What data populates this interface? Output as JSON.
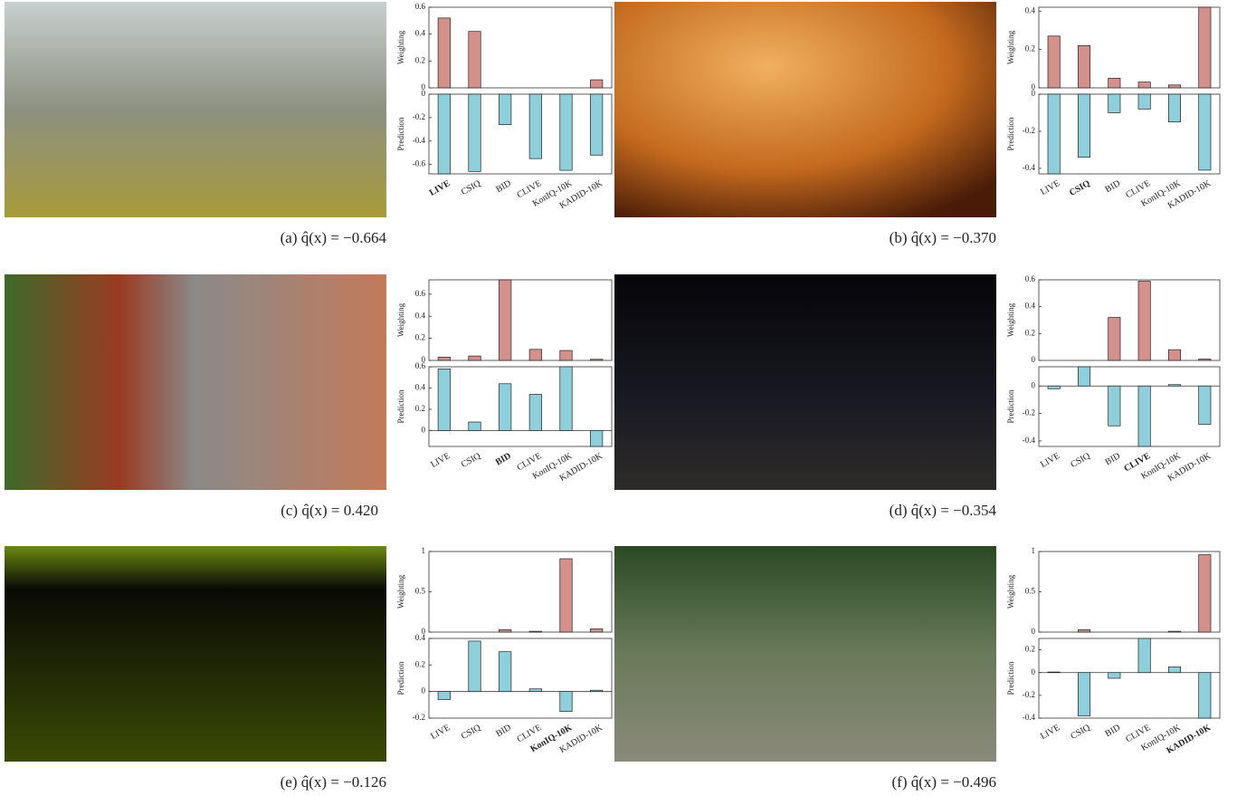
{
  "chart_data": [
    {
      "type": "bar",
      "caption": "(a) q̂(x) = −0.664",
      "categories": [
        "LIVE",
        "CSIQ",
        "BID",
        "CLIVE",
        "KonIQ-10K",
        "KADID-10K"
      ],
      "bold_category": 0,
      "series": [
        {
          "name": "Weighting",
          "color": "#d4908a",
          "values": [
            0.52,
            0.42,
            0,
            0,
            0,
            0.06
          ],
          "ylim": [
            0,
            0.6
          ],
          "yticks": [
            0,
            0.2,
            0.4,
            0.6
          ]
        },
        {
          "name": "Prediction",
          "color": "#8ecfdb",
          "values": [
            -0.68,
            -0.66,
            -0.26,
            -0.55,
            -0.65,
            -0.52
          ],
          "ylim": [
            -0.68,
            0
          ],
          "yticks": [
            -0.6,
            -0.4,
            -0.2,
            0
          ]
        }
      ]
    },
    {
      "type": "bar",
      "caption": "(b) q̂(x) = −0.370",
      "categories": [
        "LIVE",
        "CSIQ",
        "BID",
        "CLIVE",
        "KonIQ-10K",
        "KADID-10K"
      ],
      "bold_category": 1,
      "series": [
        {
          "name": "Weighting",
          "color": "#d4908a",
          "values": [
            0.27,
            0.22,
            0.05,
            0.03,
            0.015,
            0.42
          ],
          "ylim": [
            0,
            0.42
          ],
          "yticks": [
            0,
            0.2,
            0.4
          ]
        },
        {
          "name": "Prediction",
          "color": "#8ecfdb",
          "values": [
            -0.43,
            -0.34,
            -0.1,
            -0.08,
            -0.15,
            -0.41
          ],
          "ylim": [
            -0.43,
            0
          ],
          "yticks": [
            -0.4,
            -0.2,
            0
          ]
        }
      ]
    },
    {
      "type": "bar",
      "caption": "(c) q̂(x) = 0.420",
      "categories": [
        "LIVE",
        "CSIQ",
        "BID",
        "CLIVE",
        "KonIQ-10K",
        "KADID-10K"
      ],
      "bold_category": 2,
      "series": [
        {
          "name": "Weighting",
          "color": "#d4908a",
          "values": [
            0.03,
            0.04,
            0.73,
            0.1,
            0.09,
            0.01
          ],
          "ylim": [
            0,
            0.73
          ],
          "yticks": [
            0,
            0.2,
            0.4,
            0.6
          ]
        },
        {
          "name": "Prediction",
          "color": "#8ecfdb",
          "values": [
            0.58,
            0.08,
            0.44,
            0.34,
            0.6,
            -0.15
          ],
          "ylim": [
            -0.15,
            0.6
          ],
          "yticks": [
            0,
            0.2,
            0.4,
            0.6
          ]
        }
      ]
    },
    {
      "type": "bar",
      "caption": "(d) q̂(x) = −0.354",
      "categories": [
        "LIVE",
        "CSIQ",
        "BID",
        "CLIVE",
        "KonIQ-10K",
        "KADID-10K"
      ],
      "bold_category": 3,
      "series": [
        {
          "name": "Weighting",
          "color": "#d4908a",
          "values": [
            0,
            0,
            0.32,
            0.59,
            0.08,
            0.01
          ],
          "ylim": [
            0,
            0.6
          ],
          "yticks": [
            0,
            0.2,
            0.4,
            0.6
          ]
        },
        {
          "name": "Prediction",
          "color": "#8ecfdb",
          "values": [
            -0.02,
            0.14,
            -0.29,
            -0.44,
            0.01,
            -0.28
          ],
          "ylim": [
            -0.44,
            0.14
          ],
          "yticks": [
            -0.4,
            -0.2,
            0
          ]
        }
      ]
    },
    {
      "type": "bar",
      "caption": "(e) q̂(x) = −0.126",
      "categories": [
        "LIVE",
        "CSIQ",
        "BID",
        "CLIVE",
        "KonIQ-10K",
        "KADID-10K"
      ],
      "bold_category": 4,
      "series": [
        {
          "name": "Weighting",
          "color": "#d4908a",
          "values": [
            0,
            0,
            0.03,
            0.01,
            0.91,
            0.04
          ],
          "ylim": [
            0,
            1
          ],
          "yticks": [
            0,
            0.5,
            1
          ]
        },
        {
          "name": "Prediction",
          "color": "#8ecfdb",
          "values": [
            -0.06,
            0.38,
            0.3,
            0.02,
            -0.15,
            0.01
          ],
          "ylim": [
            -0.2,
            0.4
          ],
          "yticks": [
            -0.2,
            0,
            0.2,
            0.4
          ]
        }
      ]
    },
    {
      "type": "bar",
      "caption": "(f) q̂(x) = −0.496",
      "categories": [
        "LIVE",
        "CSIQ",
        "BID",
        "CLIVE",
        "KonIQ-10K",
        "KADID-10K"
      ],
      "bold_category": 5,
      "series": [
        {
          "name": "Weighting",
          "color": "#d4908a",
          "values": [
            0,
            0.03,
            0,
            0,
            0.01,
            0.96
          ],
          "ylim": [
            0,
            1
          ],
          "yticks": [
            0,
            0.5,
            1
          ]
        },
        {
          "name": "Prediction",
          "color": "#8ecfdb",
          "values": [
            0.005,
            -0.38,
            -0.05,
            0.3,
            0.05,
            -0.4
          ],
          "ylim": [
            -0.4,
            0.3
          ],
          "yticks": [
            -0.4,
            -0.2,
            0,
            0.2
          ]
        }
      ]
    }
  ]
}
